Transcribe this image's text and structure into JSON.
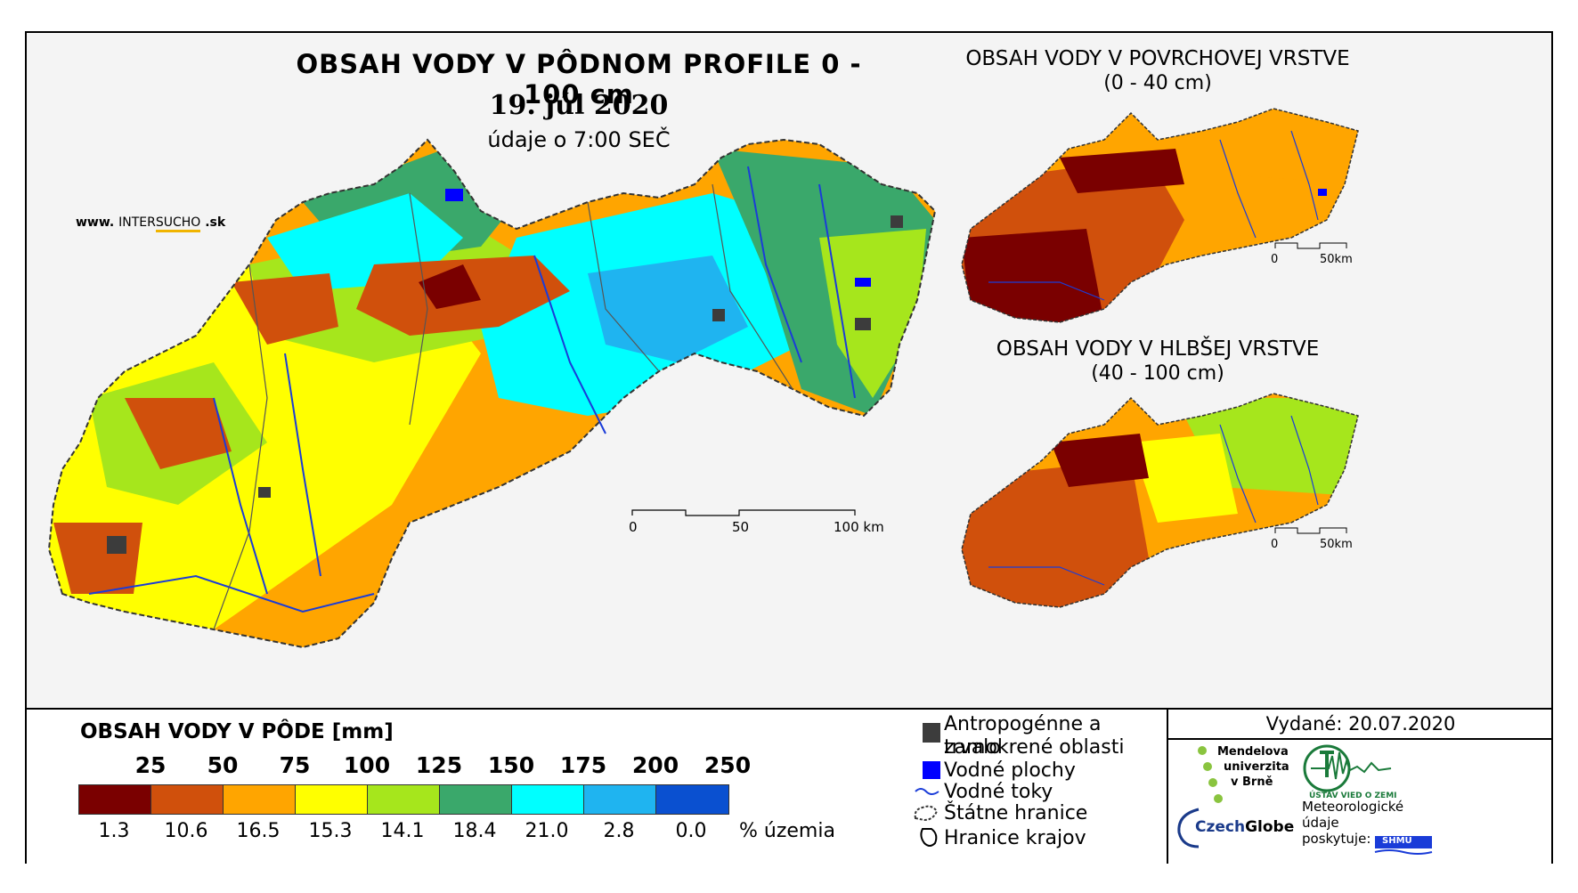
{
  "main_map": {
    "title": "OBSAH VODY V PÔDNOM PROFILE 0 - 100 cm",
    "date": "19. júl 2020",
    "time_note": "údaje o 7:00 SEČ",
    "website_prefix": "www.",
    "website_brand_a": "INTER",
    "website_brand_b": "SUCHO",
    "website_suffix": ".sk",
    "scale_labels": [
      "0",
      "50",
      "100 km"
    ]
  },
  "surface_map": {
    "title": "OBSAH VODY V POVRCHOVEJ VRSTVE",
    "range": "(0 - 40 cm)",
    "scale_labels": [
      "0",
      "50km"
    ]
  },
  "deep_map": {
    "title": "OBSAH VODY V HLBŠEJ VRSTVE",
    "range": "(40 - 100 cm)",
    "scale_labels": [
      "0",
      "50km"
    ]
  },
  "legend": {
    "title": "OBSAH VODY V PÔDE [mm]",
    "thresholds": [
      "25",
      "50",
      "75",
      "100",
      "125",
      "150",
      "175",
      "200",
      "250"
    ],
    "classes": [
      {
        "color": "#7a0000",
        "percent": "1.3"
      },
      {
        "color": "#d0500c",
        "percent": "10.6"
      },
      {
        "color": "#ffa500",
        "percent": "16.5"
      },
      {
        "color": "#ffff00",
        "percent": "15.3"
      },
      {
        "color": "#a6e61c",
        "percent": "14.1"
      },
      {
        "color": "#3aa86b",
        "percent": "18.4"
      },
      {
        "color": "#00ffff",
        "percent": "21.0"
      },
      {
        "color": "#1fb4f0",
        "percent": "2.8"
      },
      {
        "color": "#0a50d0",
        "percent": "0.0"
      }
    ],
    "percent_unit": "% územia"
  },
  "symbols": [
    {
      "icon": "anthropogenic-area-icon",
      "label": "Antropogénne a trvalo",
      "label2": "zamokrené oblasti"
    },
    {
      "icon": "water-body-icon",
      "label": "Vodné plochy"
    },
    {
      "icon": "river-icon",
      "label": "Vodné toky"
    },
    {
      "icon": "state-border-icon",
      "label": "Štátne hranice"
    },
    {
      "icon": "region-border-icon",
      "label": "Hranice krajov"
    }
  ],
  "issued": "Vydané: 20.07.2020",
  "logos": {
    "mendel_1": "Mendelova",
    "mendel_2": "univerzita",
    "mendel_3": "v Brně",
    "czechglobe_a": "Czech",
    "czechglobe_b": "Globe",
    "uvz": "ÚSTAV VIED O ZEMI",
    "meteo_1": "Meteorologické",
    "meteo_2": "údaje",
    "meteo_3": "poskytuje:",
    "shmu": "SHMÚ"
  },
  "colors": {
    "anthropogenic": "#3c3c3c",
    "water": "#0000ff",
    "river": "#1a3cd8"
  }
}
